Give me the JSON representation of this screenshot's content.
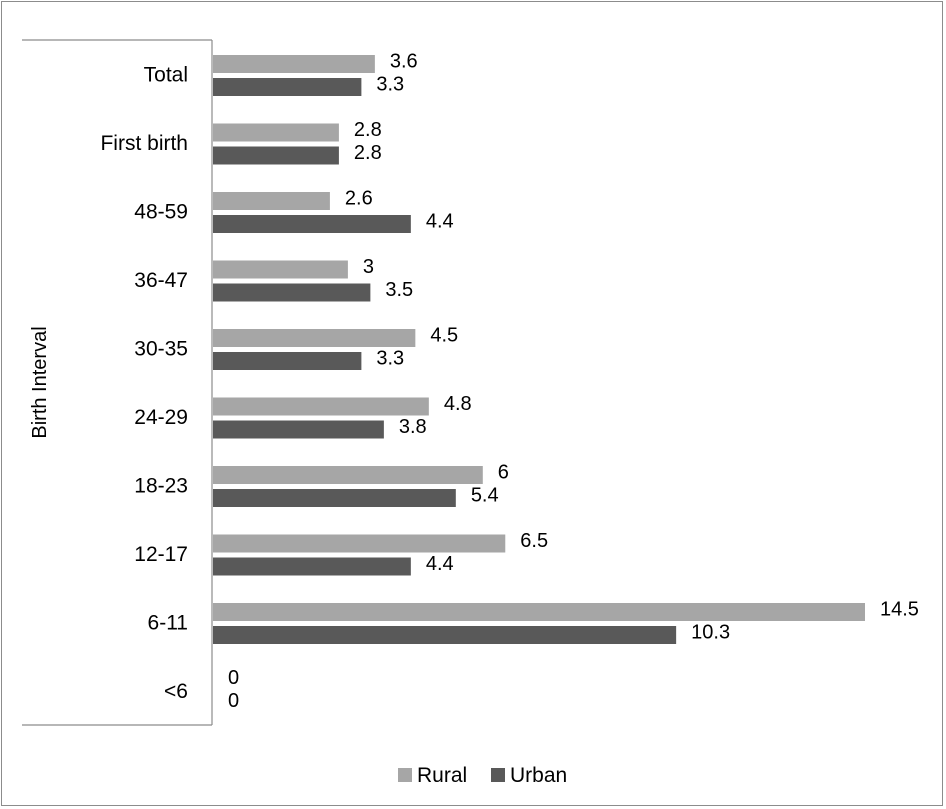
{
  "chart_data": {
    "type": "bar",
    "orientation": "horizontal",
    "categories": [
      "Total",
      "First birth",
      "48-59",
      "36-47",
      "30-35",
      "24-29",
      "18-23",
      "12-17",
      "6-11",
      "<6"
    ],
    "series": [
      {
        "name": "Rural",
        "values": [
          3.6,
          2.8,
          2.6,
          3,
          4.5,
          4.8,
          6,
          6.5,
          14.5,
          0
        ],
        "labels": [
          "3.6",
          "2.8",
          "2.6",
          "3",
          "4.5",
          "4.8",
          "6",
          "6.5",
          "14.5",
          "0"
        ],
        "color": "#a6a6a6"
      },
      {
        "name": "Urban",
        "values": [
          3.3,
          2.8,
          4.4,
          3.5,
          3.3,
          3.8,
          5.4,
          4.4,
          10.3,
          0
        ],
        "labels": [
          "3.3",
          "2.8",
          "4.4",
          "3.5",
          "3.3",
          "3.8",
          "5.4",
          "4.4",
          "10.3",
          "0"
        ],
        "color": "#595959"
      }
    ],
    "xlim": [
      0,
      14.5
    ],
    "ylabel": "Birth Interval",
    "xlabel": "",
    "title": "",
    "grid": false,
    "legend": "bottom"
  }
}
